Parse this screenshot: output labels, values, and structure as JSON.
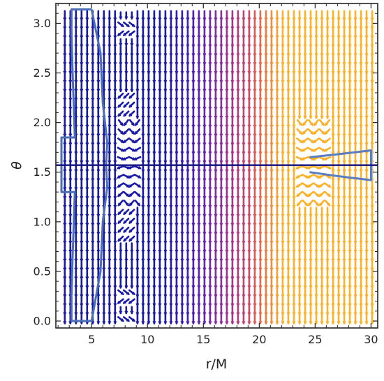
{
  "chart_data": {
    "type": "vector-field",
    "xlabel": "r/M",
    "ylabel": "θ",
    "xlim": [
      1.8,
      30.6
    ],
    "ylim": [
      -0.07,
      3.2
    ],
    "x_ticks": [
      5,
      10,
      15,
      20,
      25,
      30
    ],
    "x_tick_labels": [
      "5",
      "10",
      "15",
      "20",
      "25",
      "30"
    ],
    "y_ticks": [
      0.0,
      0.5,
      1.0,
      1.5,
      2.0,
      2.5,
      3.0
    ],
    "y_tick_labels": [
      "0.0",
      "0.5",
      "1.0",
      "1.5",
      "2.0",
      "2.5",
      "3.0"
    ],
    "grid": false,
    "colormap": [
      "#1a1aa8",
      "#4a1fb8",
      "#7a2aa8",
      "#a8338a",
      "#d04a66",
      "#f07a3a",
      "#fbb12a"
    ],
    "vector_columns_r": [
      2.6,
      3.1,
      3.6,
      4.1,
      4.6,
      5.1,
      5.6,
      6.1,
      6.6,
      7.1,
      7.6,
      8.1,
      8.6,
      9.1,
      9.6,
      10.1,
      10.6,
      11.1,
      11.6,
      12.1,
      12.6,
      13.1,
      13.6,
      14.1,
      14.6,
      15.1,
      15.6,
      16.1,
      16.6,
      17.1,
      17.6,
      18.1,
      18.6,
      19.1,
      19.6,
      20.1,
      20.6,
      21.1,
      21.6,
      22.1,
      22.6,
      23.1,
      23.6,
      24.1,
      24.6,
      25.1,
      25.6,
      26.1,
      26.6,
      27.1,
      27.6,
      28.1,
      28.6,
      29.1,
      29.6,
      30.1
    ],
    "equator_theta": 1.5708,
    "contour_inner_boundary": {
      "r": [
        5.0,
        3.2,
        3.2,
        3.3,
        3.5,
        2.3,
        2.3,
        3.5,
        3.3,
        3.2,
        3.2,
        5.0,
        5.8,
        6.0,
        6.4,
        6.3,
        6.4,
        6.0,
        5.8,
        5.0
      ],
      "theta": [
        3.14,
        3.14,
        2.9,
        2.5,
        1.85,
        1.85,
        1.3,
        1.3,
        0.65,
        0.25,
        0.0,
        0.0,
        0.5,
        1.0,
        1.35,
        1.57,
        1.8,
        2.2,
        2.7,
        3.14
      ]
    },
    "contour_outer_shell": {
      "r": [
        24.5,
        27.0,
        30.0,
        30.0,
        27.0,
        24.5
      ],
      "theta": [
        1.65,
        1.68,
        1.72,
        1.42,
        1.46,
        1.5
      ]
    }
  }
}
